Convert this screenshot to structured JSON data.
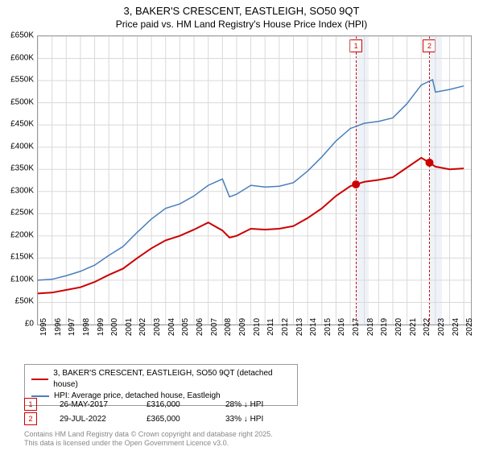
{
  "title": "3, BAKER'S CRESCENT, EASTLEIGH, SO50 9QT",
  "subtitle": "Price paid vs. HM Land Registry's House Price Index (HPI)",
  "chart": {
    "type": "line",
    "x_range": [
      1995,
      2025.5
    ],
    "y_range": [
      0,
      650
    ],
    "y_unit_prefix": "£",
    "y_unit_suffix": "K",
    "y_ticks": [
      0,
      50,
      100,
      150,
      200,
      250,
      300,
      350,
      400,
      450,
      500,
      550,
      600,
      650
    ],
    "x_ticks": [
      1995,
      1996,
      1997,
      1998,
      1999,
      2000,
      2001,
      2002,
      2003,
      2004,
      2005,
      2006,
      2007,
      2008,
      2009,
      2010,
      2011,
      2012,
      2013,
      2014,
      2015,
      2016,
      2017,
      2018,
      2019,
      2020,
      2021,
      2022,
      2023,
      2024,
      2025
    ],
    "grid_color": "#d9d9d9",
    "axis_color": "#999999",
    "background_color": "#ffffff",
    "series": [
      {
        "id": "price_paid",
        "label": "3, BAKER'S CRESCENT, EASTLEIGH, SO50 9QT (detached house)",
        "color": "#cc0000",
        "width": 2,
        "points": [
          [
            1995,
            70
          ],
          [
            1996,
            72
          ],
          [
            1997,
            78
          ],
          [
            1998,
            84
          ],
          [
            1999,
            96
          ],
          [
            2000,
            112
          ],
          [
            2001,
            126
          ],
          [
            2002,
            150
          ],
          [
            2003,
            172
          ],
          [
            2004,
            190
          ],
          [
            2005,
            200
          ],
          [
            2006,
            214
          ],
          [
            2007,
            230
          ],
          [
            2008,
            212
          ],
          [
            2008.5,
            196
          ],
          [
            2009,
            200
          ],
          [
            2010,
            216
          ],
          [
            2011,
            214
          ],
          [
            2012,
            216
          ],
          [
            2013,
            222
          ],
          [
            2014,
            240
          ],
          [
            2015,
            262
          ],
          [
            2016,
            290
          ],
          [
            2017,
            312
          ],
          [
            2017.4,
            316
          ],
          [
            2018,
            322
          ],
          [
            2019,
            326
          ],
          [
            2020,
            332
          ],
          [
            2021,
            354
          ],
          [
            2022,
            376
          ],
          [
            2022.58,
            365
          ],
          [
            2023,
            356
          ],
          [
            2024,
            350
          ],
          [
            2025,
            352
          ]
        ],
        "markers": [
          {
            "x": 2017.4,
            "y": 316,
            "style": "circle",
            "size": 5,
            "fill": "#cc0000"
          },
          {
            "x": 2022.58,
            "y": 365,
            "style": "circle",
            "size": 5,
            "fill": "#cc0000"
          }
        ]
      },
      {
        "id": "hpi",
        "label": "HPI: Average price, detached house, Eastleigh",
        "color": "#4a7ebb",
        "width": 1.5,
        "points": [
          [
            1995,
            100
          ],
          [
            1996,
            102
          ],
          [
            1997,
            110
          ],
          [
            1998,
            120
          ],
          [
            1999,
            134
          ],
          [
            2000,
            156
          ],
          [
            2001,
            176
          ],
          [
            2002,
            208
          ],
          [
            2003,
            238
          ],
          [
            2004,
            262
          ],
          [
            2005,
            272
          ],
          [
            2006,
            290
          ],
          [
            2007,
            314
          ],
          [
            2008,
            328
          ],
          [
            2008.5,
            288
          ],
          [
            2009,
            294
          ],
          [
            2010,
            314
          ],
          [
            2011,
            310
          ],
          [
            2012,
            312
          ],
          [
            2013,
            320
          ],
          [
            2014,
            346
          ],
          [
            2015,
            378
          ],
          [
            2016,
            414
          ],
          [
            2017,
            442
          ],
          [
            2018,
            454
          ],
          [
            2019,
            458
          ],
          [
            2020,
            466
          ],
          [
            2021,
            498
          ],
          [
            2022,
            540
          ],
          [
            2022.8,
            552
          ],
          [
            2023,
            524
          ],
          [
            2024,
            530
          ],
          [
            2025,
            538
          ]
        ]
      }
    ],
    "sale_bands": [
      {
        "num": "1",
        "x": 2017.4,
        "width_years": 0.9,
        "color": "#cc0000",
        "shade": "#e8eef7"
      },
      {
        "num": "2",
        "x": 2022.58,
        "width_years": 0.9,
        "color": "#cc0000",
        "shade": "#e8eef7"
      }
    ]
  },
  "legend": {
    "items": [
      {
        "color": "#cc0000",
        "label": "3, BAKER'S CRESCENT, EASTLEIGH, SO50 9QT (detached house)"
      },
      {
        "color": "#4a7ebb",
        "label": "HPI: Average price, detached house, Eastleigh"
      }
    ]
  },
  "sales": [
    {
      "num": "1",
      "date": "26-MAY-2017",
      "price": "£316,000",
      "vs_hpi": "28% ↓ HPI",
      "color": "#cc0000"
    },
    {
      "num": "2",
      "date": "29-JUL-2022",
      "price": "£365,000",
      "vs_hpi": "33% ↓ HPI",
      "color": "#cc0000"
    }
  ],
  "attribution": {
    "line1": "Contains HM Land Registry data © Crown copyright and database right 2025.",
    "line2": "This data is licensed under the Open Government Licence v3.0."
  }
}
